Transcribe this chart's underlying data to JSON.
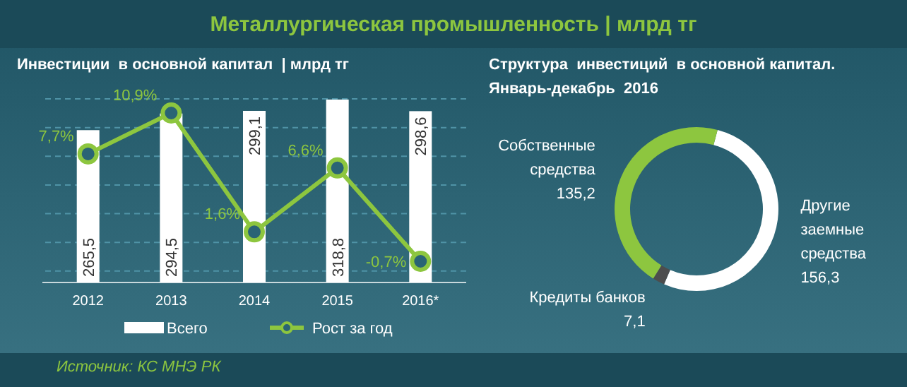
{
  "chart_data": [
    {
      "type": "bar",
      "title": "Металлургическая промышленность | млрд тг",
      "subtitle": "Инвестиции  в основной капитал  | млрд тг",
      "annotations": [
        "Источник: КС МНЭ РК"
      ],
      "categories": [
        "2012",
        "2013",
        "2014",
        "2015",
        "2016*"
      ],
      "series": [
        {
          "name": "Всего",
          "type": "bar",
          "color": "#ffffff",
          "values": [
            265.5,
            294.5,
            299.1,
            318.8,
            298.6
          ],
          "value_labels": [
            "265,5",
            "294,5",
            "299,1",
            "318,8",
            "298,6"
          ]
        },
        {
          "name": "Рост за год",
          "type": "line",
          "axis": "y2",
          "color": "#8dc63f",
          "values": [
            7.7,
            10.9,
            1.6,
            6.6,
            -0.7
          ],
          "value_labels": [
            "7,7%",
            "10,9%",
            "1,6%",
            "6,6%",
            "-0,7%"
          ]
        }
      ],
      "ylim": [
        0,
        320
      ],
      "yticks": [
        {
          "value": 20,
          "label": null
        },
        {
          "value": 70,
          "label": null
        },
        {
          "value": 120,
          "label": null
        },
        {
          "value": 170,
          "label": null
        },
        {
          "value": 220,
          "label": null
        },
        {
          "value": 270,
          "label": null
        },
        {
          "value": 320,
          "label": null
        }
      ],
      "tick_labels": "x",
      "grid": "y",
      "legend": "bottom",
      "marker": "circle"
    },
    {
      "type": "donut",
      "title": "Структура  инвестиций  в основной капитал. Январь-декабрь  2016",
      "categories": [
        "Другие заемные средства",
        "Кредиты банков",
        "Собственные средства"
      ],
      "values": [
        156.3,
        7.1,
        135.2
      ],
      "value_labels": [
        "156,3",
        "7,1",
        "135,2"
      ],
      "colors": [
        "#ffffff",
        "#4d4d4d",
        "#8dc63f"
      ]
    }
  ]
}
